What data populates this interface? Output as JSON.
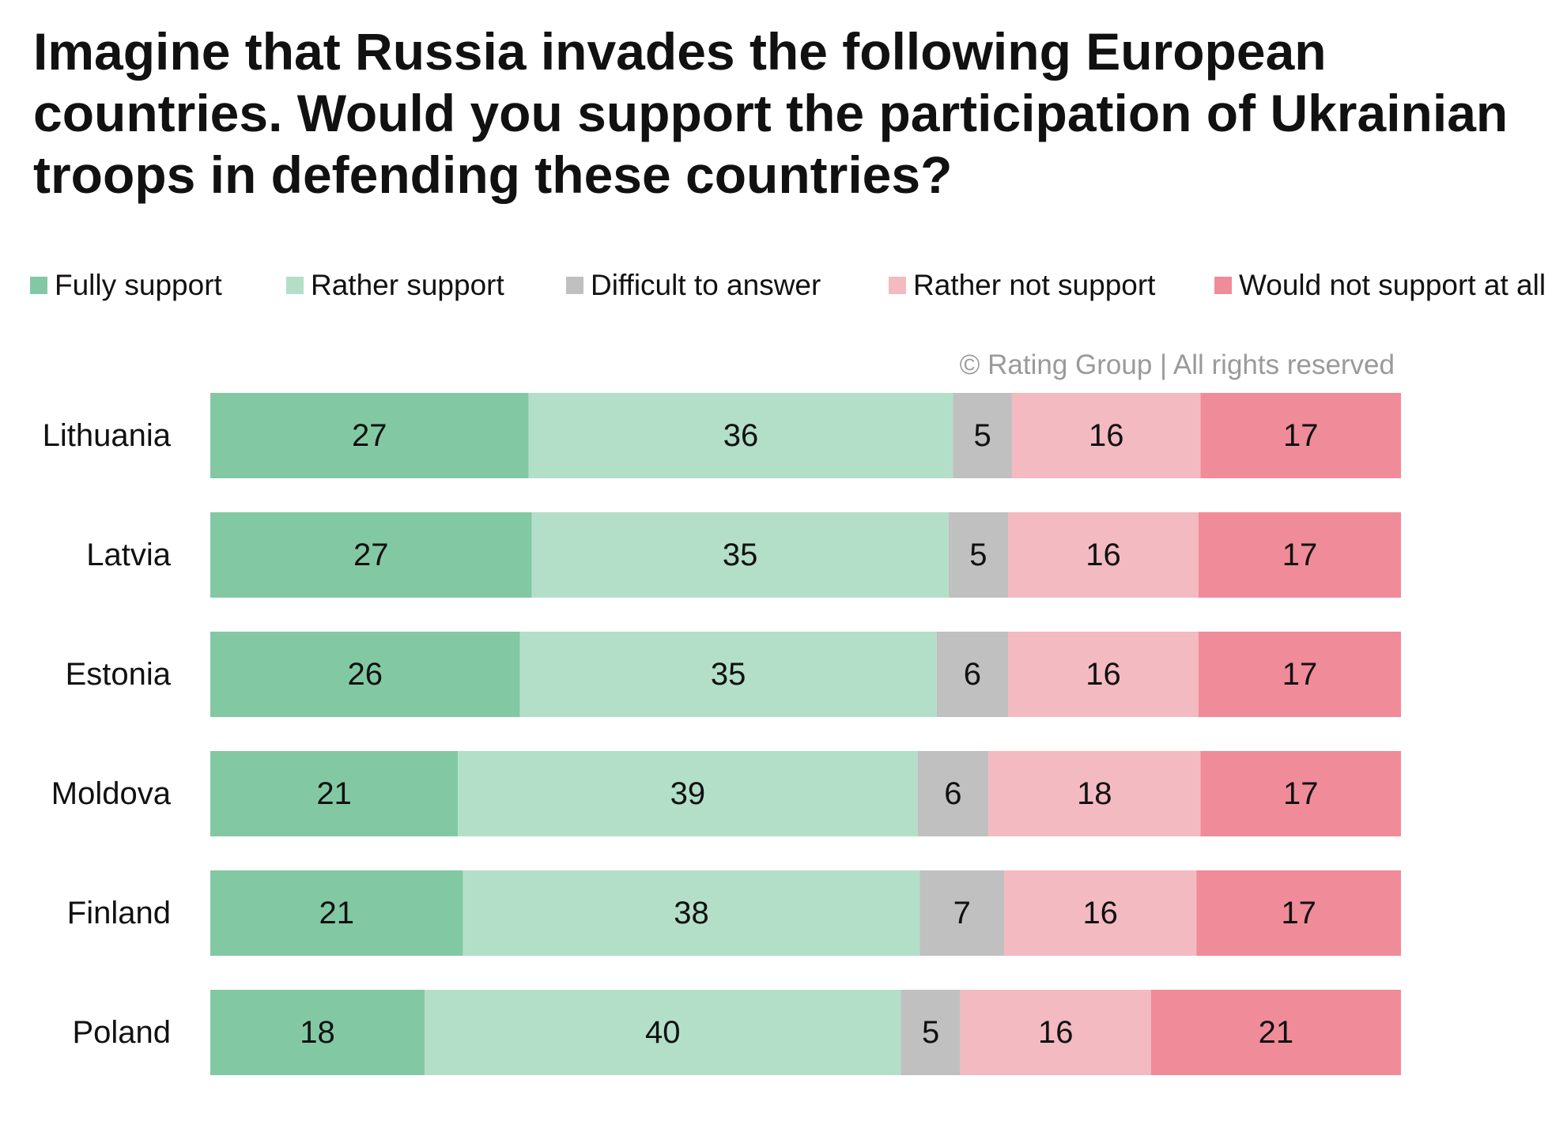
{
  "title": "Imagine that Russia invades the following European countries. Would you support the participation of Ukrainian troops in defending these countries?",
  "credit": "© Rating Group | All rights reserved",
  "chart_data": {
    "type": "bar",
    "orientation": "horizontal",
    "stacked": true,
    "categories": [
      "Lithuania",
      "Latvia",
      "Estonia",
      "Moldova",
      "Finland",
      "Poland"
    ],
    "series": [
      {
        "name": "Fully support",
        "color": "#82c9a3",
        "values": [
          27,
          27,
          26,
          21,
          21,
          18
        ]
      },
      {
        "name": "Rather support",
        "color": "#b3dfc8",
        "values": [
          36,
          35,
          35,
          39,
          38,
          40
        ]
      },
      {
        "name": "Difficult to answer",
        "color": "#c0c0c0",
        "values": [
          5,
          5,
          6,
          6,
          7,
          5
        ]
      },
      {
        "name": "Rather not support",
        "color": "#f3bac1",
        "values": [
          16,
          16,
          16,
          18,
          16,
          16
        ]
      },
      {
        "name": "Would not support at all",
        "color": "#f08b99",
        "values": [
          17,
          17,
          17,
          17,
          17,
          21
        ]
      }
    ],
    "legend_position": "top",
    "grid": false,
    "data_labels": true
  }
}
